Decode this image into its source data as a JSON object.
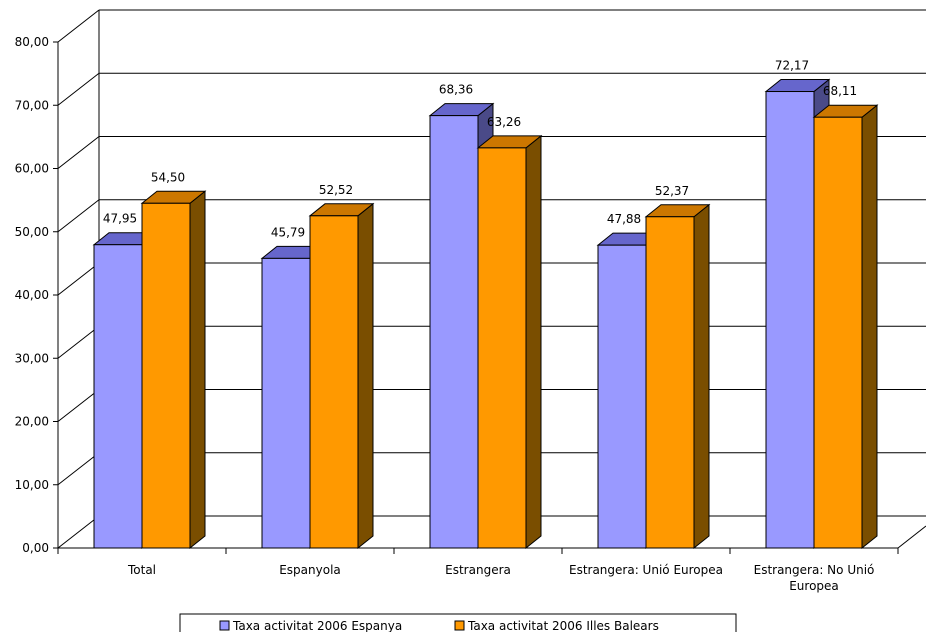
{
  "chart_data": {
    "type": "bar",
    "categories": [
      [
        "Total"
      ],
      [
        "Espanyola"
      ],
      [
        "Estrangera"
      ],
      [
        "Estrangera: Unió Europea"
      ],
      [
        "Estrangera: No Unió",
        "Europea"
      ]
    ],
    "series": [
      {
        "name": "Taxa activitat 2006 Espanya",
        "values": [
          47.95,
          45.79,
          68.36,
          47.88,
          72.17
        ],
        "labels": [
          "47,95",
          "45,79",
          "68,36",
          "47,88",
          "72,17"
        ]
      },
      {
        "name": "Taxa activitat 2006 Illes Balears",
        "values": [
          54.5,
          52.52,
          63.26,
          52.37,
          68.11
        ],
        "labels": [
          "54,50",
          "52,52",
          "63,26",
          "52,37",
          "68,11"
        ]
      }
    ],
    "y_ticks": [
      "0,00",
      "10,00",
      "20,00",
      "30,00",
      "40,00",
      "50,00",
      "60,00",
      "70,00",
      "80,00"
    ],
    "ylim": [
      0,
      80
    ],
    "grid": true,
    "legend_position": "bottom",
    "colors": {
      "series_front": [
        "#9999FF",
        "#FF9900"
      ],
      "series_top": [
        "#6666CC",
        "#CC7700"
      ],
      "series_side": [
        "#4A4A88",
        "#7A4E00"
      ]
    }
  }
}
